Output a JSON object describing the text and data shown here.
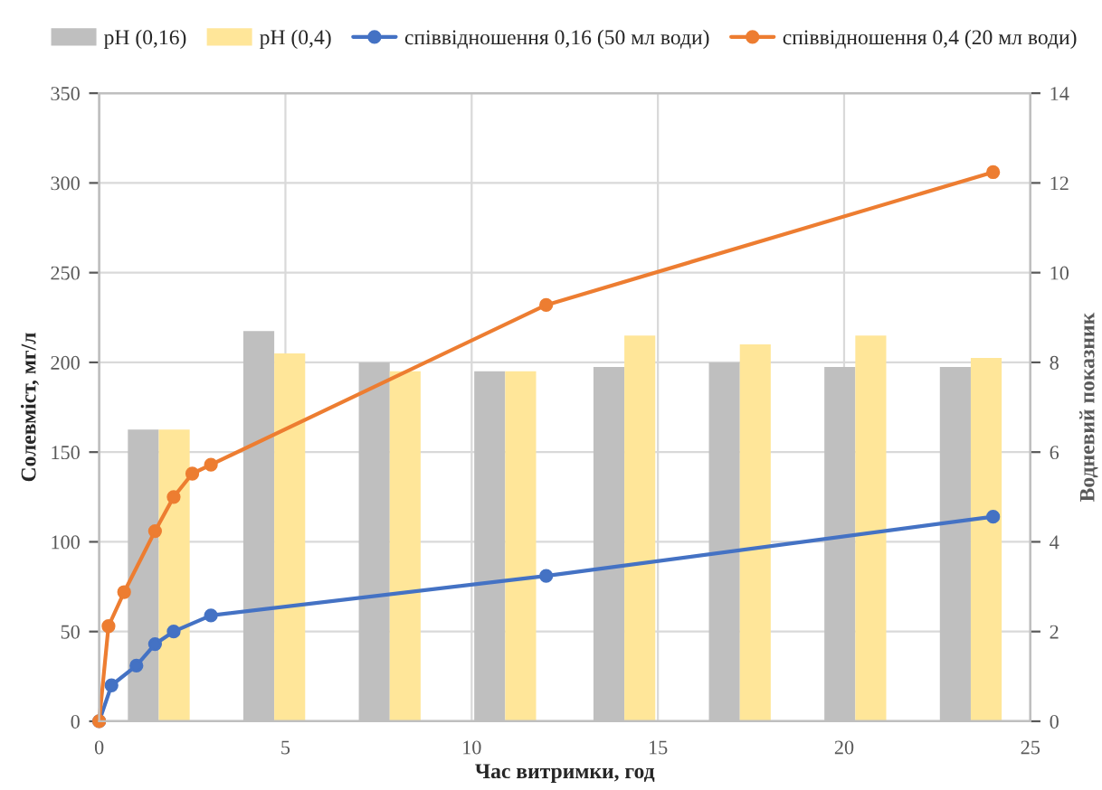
{
  "chart_data": {
    "type": "line",
    "xlabel": "Час витримки, год",
    "ylabel": "Солевміст, мг/л",
    "y2label": "Водневий показник",
    "series": [
      {
        "name": "pH (0,16)",
        "type": "bar",
        "axis": "y2",
        "color": "#bfbfbf",
        "x": [
          1.6,
          4.7,
          7.8,
          10.9,
          14.1,
          17.2,
          20.3,
          23.4
        ],
        "values": [
          6.5,
          8.7,
          8.0,
          7.8,
          7.9,
          8.0,
          7.9,
          7.9
        ]
      },
      {
        "name": "pH (0,4)",
        "type": "bar",
        "axis": "y2",
        "color": "#ffe699",
        "x": [
          1.6,
          4.7,
          7.8,
          10.9,
          14.1,
          17.2,
          20.3,
          23.4
        ],
        "values": [
          6.5,
          8.2,
          7.8,
          7.8,
          8.6,
          8.4,
          8.6,
          8.1
        ]
      },
      {
        "name": "співвідношення 0,16 (50 мл води)",
        "color": "#4472c4",
        "x": [
          0,
          0.33,
          1,
          1.5,
          2,
          3,
          12,
          24
        ],
        "values": [
          0,
          20,
          31,
          43,
          50,
          59,
          81,
          114
        ]
      },
      {
        "name": "співвідношення 0,4 (20 мл води)",
        "color": "#ed7d31",
        "x": [
          0,
          0.25,
          0.67,
          1.5,
          2,
          2.5,
          3,
          12,
          24
        ],
        "values": [
          0,
          53,
          72,
          106,
          125,
          138,
          143,
          232,
          306
        ]
      }
    ],
    "xlim": [
      0,
      25
    ],
    "xticks": [
      0,
      5,
      10,
      15,
      20,
      25
    ],
    "ylim": [
      0,
      350
    ],
    "yticks": [
      0,
      50,
      100,
      150,
      200,
      250,
      300,
      350
    ],
    "y2lim": [
      0,
      14
    ],
    "y2ticks": [
      0,
      2,
      4,
      6,
      8,
      10,
      12,
      14
    ],
    "grid": true,
    "legend": "top",
    "marker": "circle",
    "line_style": "solid"
  }
}
